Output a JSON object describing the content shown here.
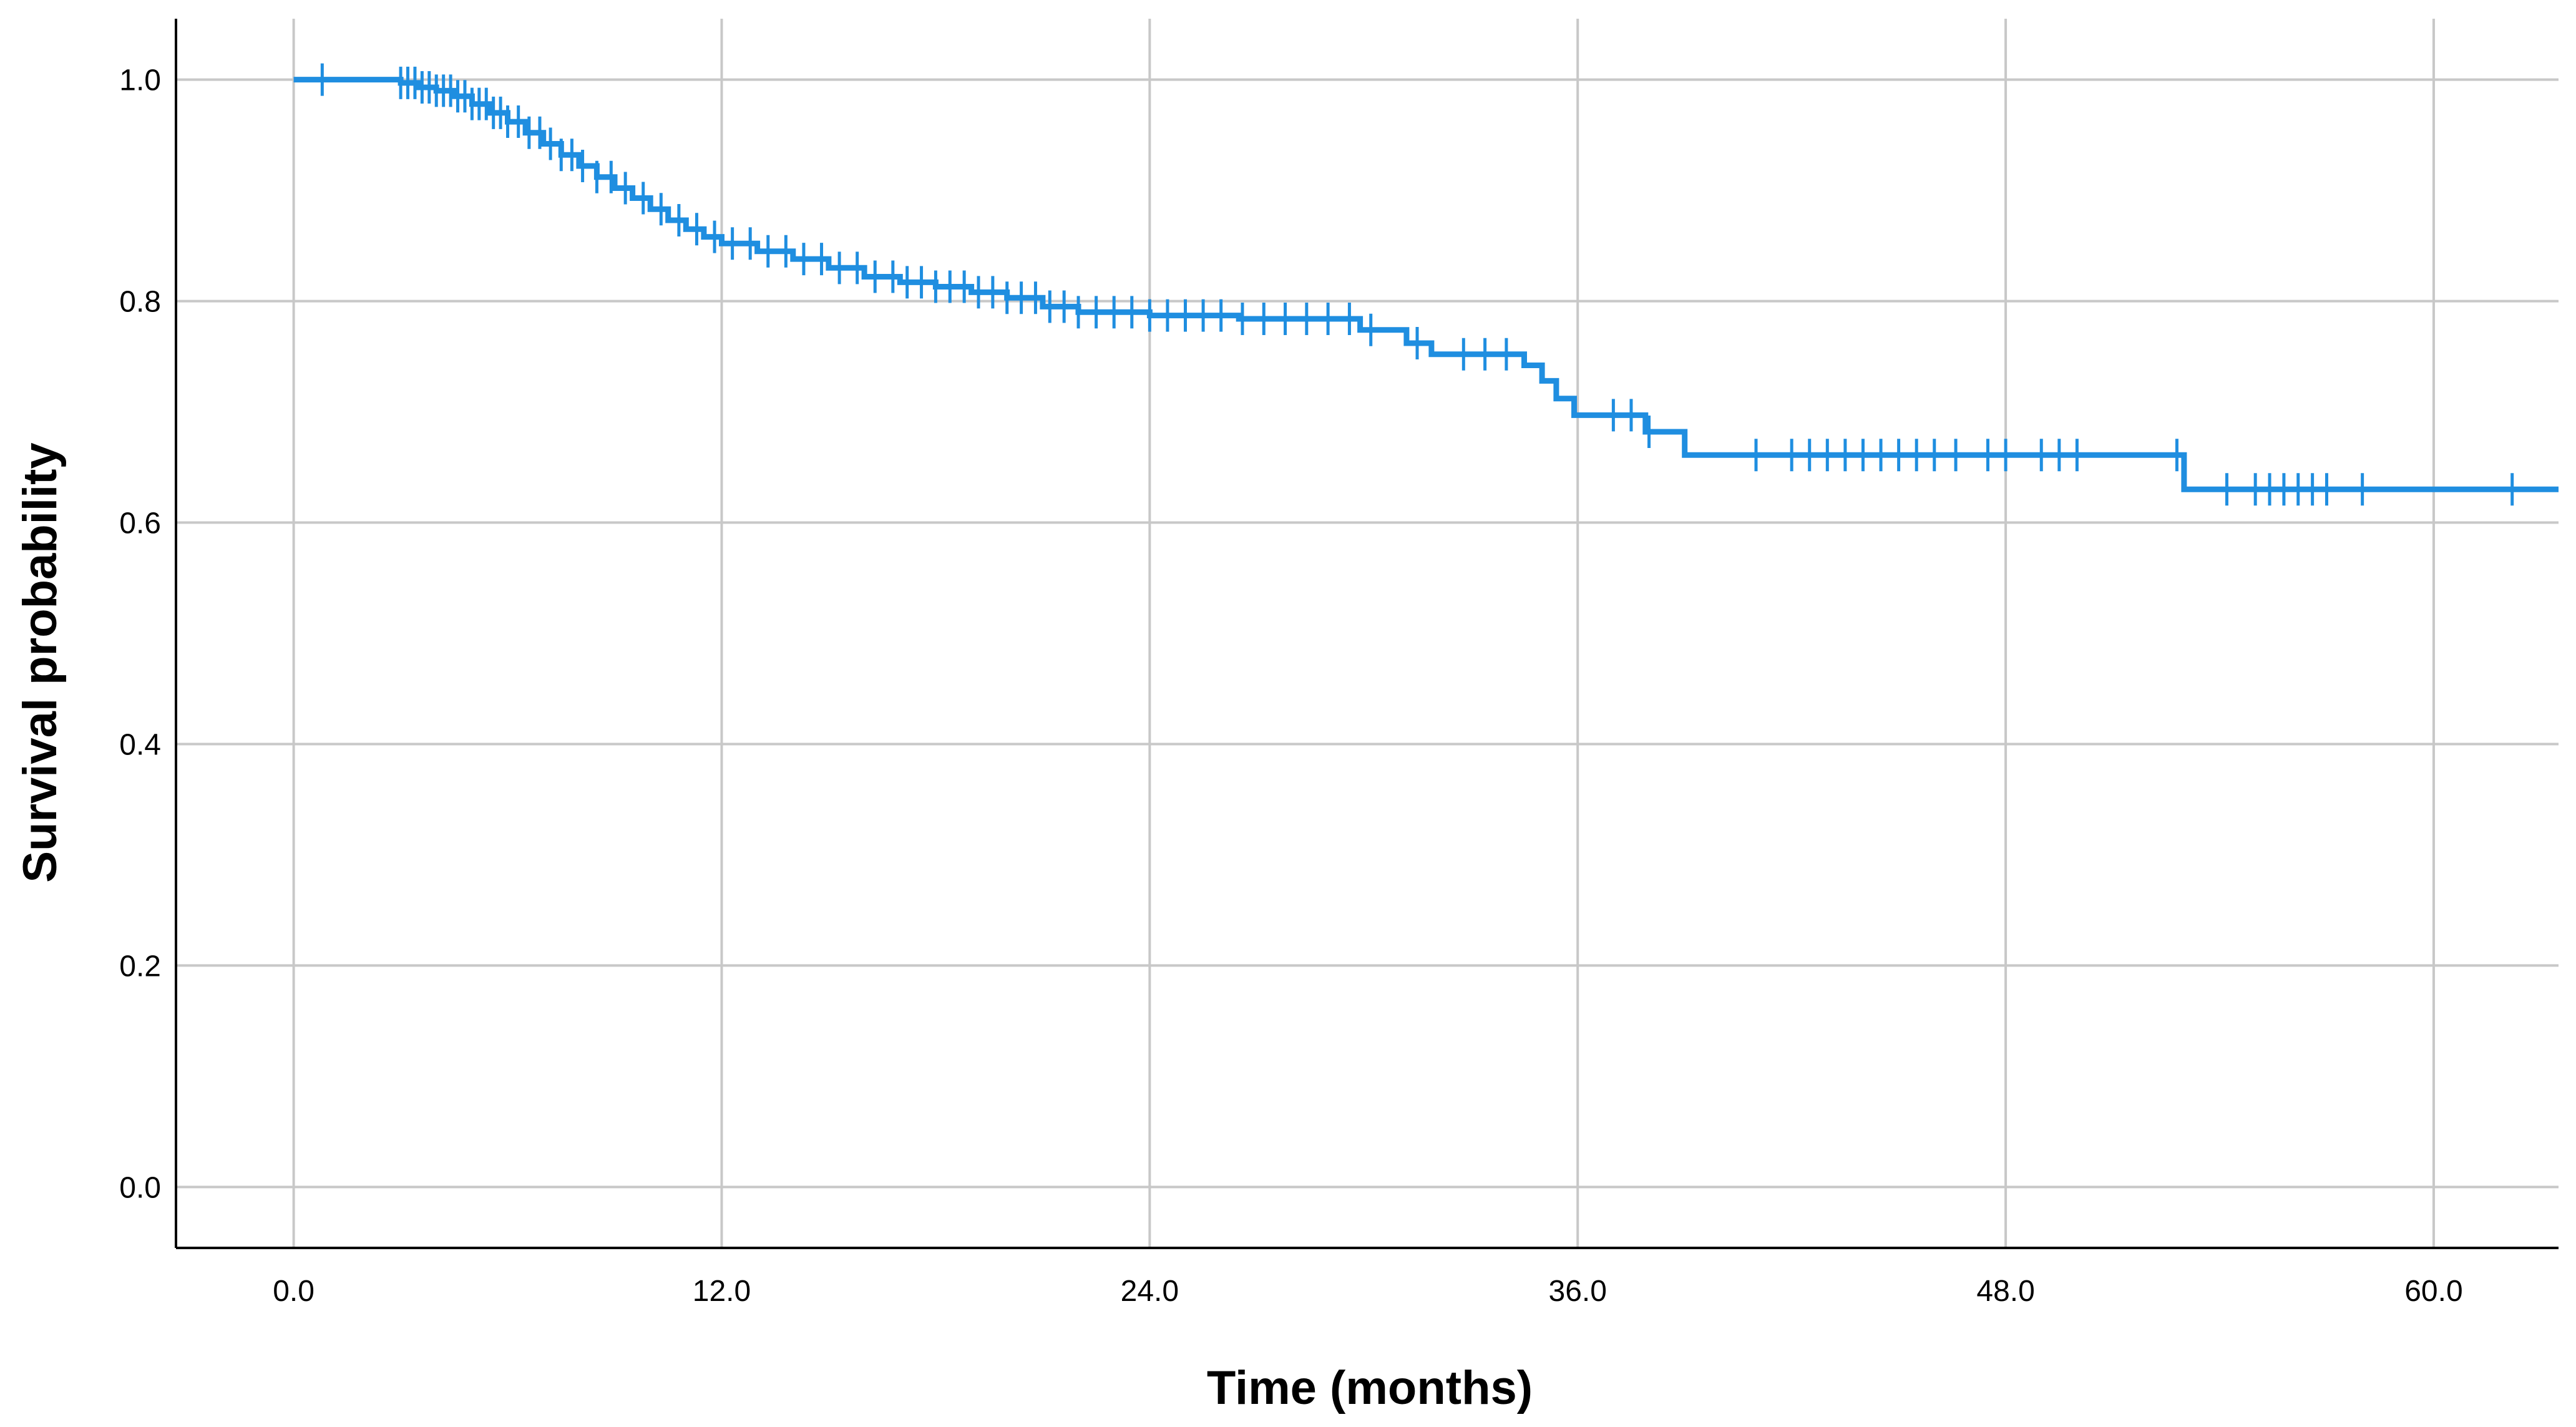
{
  "chart_data": {
    "type": "line",
    "title": "",
    "xlabel": "Time (months)",
    "ylabel": "Survival probability",
    "xlim": [
      -3.3,
      63.5
    ],
    "ylim": [
      -0.055,
      1.055
    ],
    "x_ticks": [
      "0.0",
      "12.0",
      "24.0",
      "36.0",
      "48.0",
      "60.0"
    ],
    "y_ticks": [
      "0.0",
      "0.2",
      "0.4",
      "0.6",
      "0.8",
      "1.0"
    ],
    "grid": true,
    "legend": "none",
    "colors": {
      "line": "#1f8ee0",
      "grid": "#c8c8c8",
      "axis": "#000000",
      "background": "#ffffff"
    },
    "series": [
      {
        "step": [
          [
            0,
            1.0
          ],
          [
            2.5,
            1.0
          ],
          [
            3.0,
            0.997
          ],
          [
            3.5,
            0.993
          ],
          [
            4.0,
            0.99
          ],
          [
            4.5,
            0.985
          ],
          [
            5.0,
            0.978
          ],
          [
            5.5,
            0.97
          ],
          [
            6.0,
            0.962
          ],
          [
            6.5,
            0.952
          ],
          [
            7.0,
            0.942
          ],
          [
            7.5,
            0.932
          ],
          [
            8.0,
            0.922
          ],
          [
            8.5,
            0.912
          ],
          [
            9.0,
            0.902
          ],
          [
            9.5,
            0.893
          ],
          [
            10.0,
            0.883
          ],
          [
            10.5,
            0.873
          ],
          [
            11.0,
            0.865
          ],
          [
            11.5,
            0.858
          ],
          [
            12.0,
            0.852
          ],
          [
            13.0,
            0.845
          ],
          [
            14.0,
            0.838
          ],
          [
            15.0,
            0.83
          ],
          [
            16.0,
            0.822
          ],
          [
            17.0,
            0.817
          ],
          [
            18.0,
            0.813
          ],
          [
            19.0,
            0.808
          ],
          [
            20.0,
            0.803
          ],
          [
            21.0,
            0.795
          ],
          [
            22.0,
            0.79
          ],
          [
            24.0,
            0.787
          ],
          [
            26.5,
            0.784
          ],
          [
            29.9,
            0.774
          ],
          [
            31.2,
            0.762
          ],
          [
            31.9,
            0.752
          ],
          [
            34.0,
            0.752
          ],
          [
            34.5,
            0.742
          ],
          [
            35.0,
            0.728
          ],
          [
            35.4,
            0.712
          ],
          [
            35.9,
            0.697
          ],
          [
            37.9,
            0.682
          ],
          [
            39.0,
            0.661
          ],
          [
            52.9,
            0.661
          ],
          [
            53.0,
            0.63
          ],
          [
            63.5,
            0.63
          ]
        ],
        "censored_times": [
          0.8,
          3.0,
          3.2,
          3.4,
          3.6,
          3.8,
          4.0,
          4.2,
          4.4,
          4.6,
          4.8,
          5.0,
          5.2,
          5.4,
          5.6,
          5.8,
          6.0,
          6.3,
          6.6,
          6.9,
          7.2,
          7.5,
          7.8,
          8.1,
          8.5,
          8.9,
          9.3,
          9.8,
          10.3,
          10.8,
          11.3,
          11.8,
          12.3,
          12.8,
          13.3,
          13.8,
          14.3,
          14.8,
          15.3,
          15.8,
          16.3,
          16.8,
          17.2,
          17.6,
          18.0,
          18.4,
          18.8,
          19.2,
          19.6,
          20.0,
          20.4,
          20.8,
          21.2,
          21.6,
          22.0,
          22.5,
          23.0,
          23.5,
          24.0,
          24.5,
          25.0,
          25.5,
          26.0,
          26.6,
          27.2,
          27.8,
          28.4,
          29.0,
          29.6,
          30.2,
          31.5,
          32.8,
          33.4,
          34.0,
          37.0,
          37.5,
          38.0,
          41.0,
          42.0,
          42.5,
          43.0,
          43.5,
          44.0,
          44.5,
          45.0,
          45.5,
          46.0,
          46.6,
          47.5,
          48.0,
          49.0,
          49.5,
          50.0,
          52.8,
          54.2,
          55.0,
          55.4,
          55.8,
          56.2,
          56.6,
          57.0,
          58.0,
          62.2
        ]
      }
    ]
  }
}
